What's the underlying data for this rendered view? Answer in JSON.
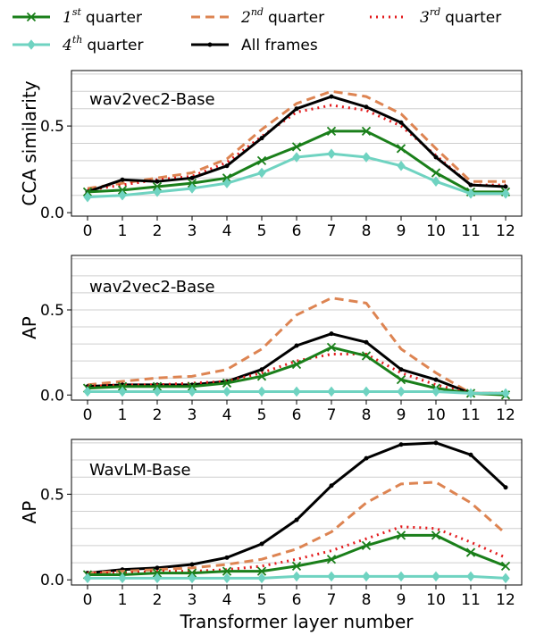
{
  "legend": [
    {
      "series": "q1",
      "ord": "1",
      "sup": "st",
      "word": "quarter"
    },
    {
      "series": "q2",
      "ord": "2",
      "sup": "nd",
      "word": "quarter"
    },
    {
      "series": "q3",
      "ord": "3",
      "sup": "rd",
      "word": "quarter"
    },
    {
      "series": "q4",
      "ord": "4",
      "sup": "th",
      "word": "quarter"
    },
    {
      "series": "all",
      "text": "All frames"
    }
  ],
  "styles": {
    "q1": {
      "color": "#1a7f1a",
      "dash": "",
      "marker": "x"
    },
    "q2": {
      "color": "#dd8452",
      "dash": "10,6",
      "marker": "none"
    },
    "q3": {
      "color": "#e31a1c",
      "dash": "2,5",
      "marker": "none"
    },
    "q4": {
      "color": "#6fd3c1",
      "dash": "",
      "marker": "diamond"
    },
    "all": {
      "color": "#000000",
      "dash": "",
      "marker": "dot"
    }
  },
  "chart_data": [
    {
      "type": "line",
      "title": "wav2vec2-Base",
      "ylabel": "CCA similarity",
      "xlabel": "",
      "ylim": [
        -0.02,
        0.82
      ],
      "yticks": [
        0.0,
        0.5
      ],
      "ytick_labels": [
        "0.0",
        "0.5"
      ],
      "x": [
        0,
        1,
        2,
        3,
        4,
        5,
        6,
        7,
        8,
        9,
        10,
        11,
        12
      ],
      "xtick_labels": [
        "0",
        "1",
        "2",
        "3",
        "4",
        "5",
        "6",
        "7",
        "8",
        "9",
        "10",
        "11",
        "12"
      ],
      "grid": "horizontal",
      "series": [
        {
          "key": "q2",
          "values": [
            0.14,
            0.17,
            0.2,
            0.23,
            0.31,
            0.48,
            0.63,
            0.7,
            0.67,
            0.57,
            0.37,
            0.18,
            0.18
          ]
        },
        {
          "key": "q3",
          "values": [
            0.13,
            0.16,
            0.19,
            0.21,
            0.29,
            0.44,
            0.58,
            0.62,
            0.59,
            0.5,
            0.33,
            0.16,
            0.16
          ]
        },
        {
          "key": "all",
          "values": [
            0.12,
            0.19,
            0.18,
            0.2,
            0.27,
            0.43,
            0.6,
            0.67,
            0.61,
            0.52,
            0.32,
            0.16,
            0.15
          ]
        },
        {
          "key": "q1",
          "values": [
            0.12,
            0.13,
            0.15,
            0.17,
            0.2,
            0.3,
            0.38,
            0.47,
            0.47,
            0.37,
            0.23,
            0.12,
            0.12
          ]
        },
        {
          "key": "q4",
          "values": [
            0.09,
            0.1,
            0.12,
            0.14,
            0.17,
            0.23,
            0.32,
            0.34,
            0.32,
            0.27,
            0.18,
            0.11,
            0.11
          ]
        }
      ]
    },
    {
      "type": "line",
      "title": "wav2vec2-Base",
      "ylabel": "AP",
      "xlabel": "",
      "ylim": [
        -0.03,
        0.82
      ],
      "yticks": [
        0.0,
        0.5
      ],
      "ytick_labels": [
        "0.0",
        "0.5"
      ],
      "x": [
        0,
        1,
        2,
        3,
        4,
        5,
        6,
        7,
        8,
        9,
        10,
        11,
        12
      ],
      "xtick_labels": [
        "0",
        "1",
        "2",
        "3",
        "4",
        "5",
        "6",
        "7",
        "8",
        "9",
        "10",
        "11",
        "12"
      ],
      "grid": "horizontal",
      "series": [
        {
          "key": "q2",
          "values": [
            0.06,
            0.08,
            0.1,
            0.11,
            0.15,
            0.27,
            0.47,
            0.57,
            0.54,
            0.27,
            0.13,
            0.01,
            0.01
          ]
        },
        {
          "key": "all",
          "values": [
            0.05,
            0.06,
            0.06,
            0.06,
            0.08,
            0.15,
            0.29,
            0.36,
            0.31,
            0.15,
            0.09,
            0.01,
            0.01
          ]
        },
        {
          "key": "q3",
          "values": [
            0.05,
            0.06,
            0.06,
            0.07,
            0.08,
            0.13,
            0.2,
            0.24,
            0.24,
            0.13,
            0.06,
            0.01,
            0.01
          ]
        },
        {
          "key": "q1",
          "values": [
            0.04,
            0.05,
            0.05,
            0.05,
            0.07,
            0.11,
            0.18,
            0.28,
            0.23,
            0.09,
            0.04,
            0.01,
            0.0
          ]
        },
        {
          "key": "q4",
          "values": [
            0.02,
            0.02,
            0.02,
            0.02,
            0.02,
            0.02,
            0.02,
            0.02,
            0.02,
            0.02,
            0.02,
            0.01,
            0.01
          ]
        }
      ]
    },
    {
      "type": "line",
      "title": "WavLM-Base",
      "ylabel": "AP",
      "xlabel": "Transformer layer number",
      "ylim": [
        -0.03,
        0.82
      ],
      "yticks": [
        0.0,
        0.5
      ],
      "ytick_labels": [
        "0.0",
        "0.5"
      ],
      "x": [
        0,
        1,
        2,
        3,
        4,
        5,
        6,
        7,
        8,
        9,
        10,
        11,
        12
      ],
      "xtick_labels": [
        "0",
        "1",
        "2",
        "3",
        "4",
        "5",
        "6",
        "7",
        "8",
        "9",
        "10",
        "11",
        "12"
      ],
      "grid": "horizontal",
      "series": [
        {
          "key": "all",
          "values": [
            0.04,
            0.06,
            0.07,
            0.09,
            0.13,
            0.21,
            0.35,
            0.55,
            0.71,
            0.79,
            0.8,
            0.73,
            0.54
          ]
        },
        {
          "key": "q2",
          "values": [
            0.04,
            0.05,
            0.06,
            0.07,
            0.09,
            0.12,
            0.18,
            0.28,
            0.45,
            0.56,
            0.57,
            0.45,
            0.27
          ]
        },
        {
          "key": "q3",
          "values": [
            0.04,
            0.04,
            0.05,
            0.05,
            0.06,
            0.08,
            0.12,
            0.17,
            0.24,
            0.31,
            0.3,
            0.22,
            0.13
          ]
        },
        {
          "key": "q1",
          "values": [
            0.03,
            0.03,
            0.04,
            0.04,
            0.05,
            0.05,
            0.08,
            0.12,
            0.2,
            0.26,
            0.26,
            0.16,
            0.08
          ]
        },
        {
          "key": "q4",
          "values": [
            0.01,
            0.01,
            0.01,
            0.01,
            0.01,
            0.01,
            0.02,
            0.02,
            0.02,
            0.02,
            0.02,
            0.02,
            0.01
          ]
        }
      ]
    }
  ]
}
